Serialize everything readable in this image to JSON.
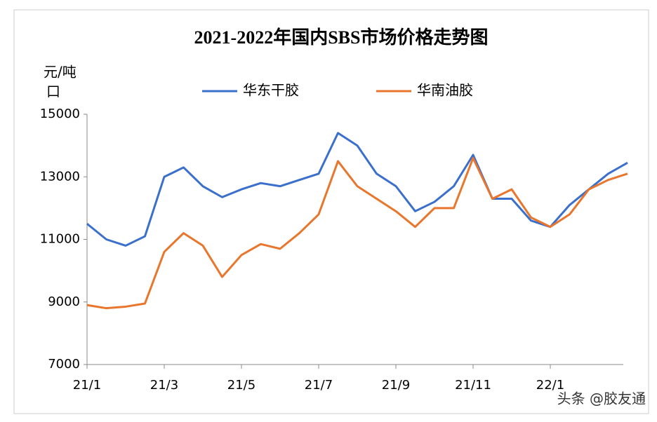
{
  "chart_data": {
    "type": "line",
    "title": "2021-2022年国内SBS市场价格走势图",
    "y_label": "元/吨",
    "y_label_note": "口",
    "watermark": "头条 @胶友通",
    "categories": [
      "21/1",
      null,
      null,
      null,
      "21/3",
      null,
      null,
      null,
      "21/5",
      null,
      null,
      null,
      "21/7",
      null,
      null,
      null,
      "21/9",
      null,
      null,
      null,
      "21/11",
      null,
      null,
      null,
      "22/1",
      null,
      null,
      null,
      null
    ],
    "series": [
      {
        "name": "华东干胶",
        "color": "#3a6fcc",
        "values": [
          11500,
          11000,
          10800,
          11100,
          13000,
          13300,
          12700,
          12350,
          12600,
          12800,
          12700,
          12900,
          13100,
          14400,
          14000,
          13100,
          12700,
          11900,
          12200,
          12700,
          13700,
          12300,
          12300,
          11600,
          11400,
          12100,
          12600,
          13100,
          13450
        ]
      },
      {
        "name": "华南油胶",
        "color": "#e8762c",
        "values": [
          8900,
          8800,
          8850,
          8950,
          10600,
          11200,
          10800,
          9800,
          10500,
          10850,
          10700,
          11200,
          11800,
          13500,
          12700,
          12300,
          11900,
          11400,
          12000,
          12000,
          13600,
          12300,
          12600,
          11700,
          11400,
          11800,
          12600,
          12900,
          13100
        ]
      }
    ],
    "ylim": [
      7000,
      15000
    ],
    "yticks": [
      7000,
      9000,
      11000,
      13000,
      15000
    ],
    "grid": false
  }
}
